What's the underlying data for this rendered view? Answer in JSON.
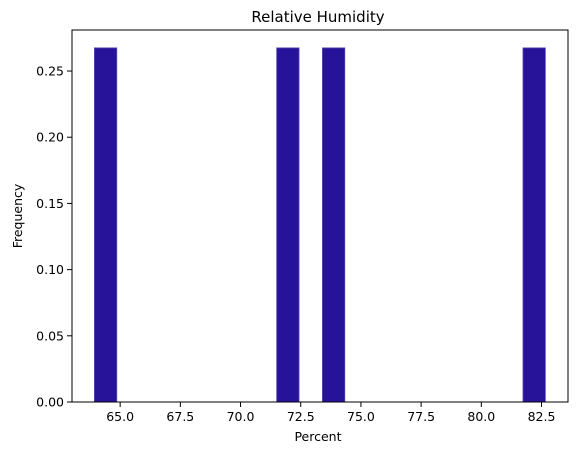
{
  "chart_data": {
    "type": "bar",
    "title": "Relative Humidity",
    "xlabel": "Percent",
    "ylabel": "Frequency",
    "bin_width": 0.93,
    "bins": [
      {
        "start": 63.93,
        "end": 64.86,
        "value": 0.2675
      },
      {
        "start": 71.5,
        "end": 72.43,
        "value": 0.2675
      },
      {
        "start": 73.4,
        "end": 74.33,
        "value": 0.2675
      },
      {
        "start": 81.73,
        "end": 82.66,
        "value": 0.2675
      }
    ],
    "xlim": [
      63.0,
      83.6
    ],
    "ylim": [
      0.0,
      0.281
    ],
    "xticks": [
      65.0,
      67.5,
      70.0,
      72.5,
      75.0,
      77.5,
      80.0,
      82.5
    ],
    "xtick_labels": [
      "65.0",
      "67.5",
      "70.0",
      "72.5",
      "75.0",
      "77.5",
      "80.0",
      "82.5"
    ],
    "yticks": [
      0.0,
      0.05,
      0.1,
      0.15,
      0.2,
      0.25
    ],
    "ytick_labels": [
      "0.00",
      "0.05",
      "0.10",
      "0.15",
      "0.20",
      "0.25"
    ],
    "bar_color": "#271399",
    "bar_edge_color": "#5a4bb0",
    "grid": false,
    "legend": "none"
  }
}
